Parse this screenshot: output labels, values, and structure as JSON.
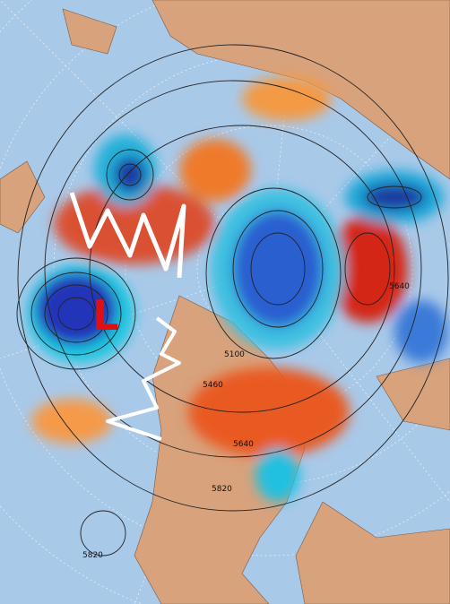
{
  "map": {
    "contour_labels": [
      "5640",
      "5460",
      "5100",
      "5640",
      "5820",
      "5820"
    ],
    "low_marker": "L"
  }
}
